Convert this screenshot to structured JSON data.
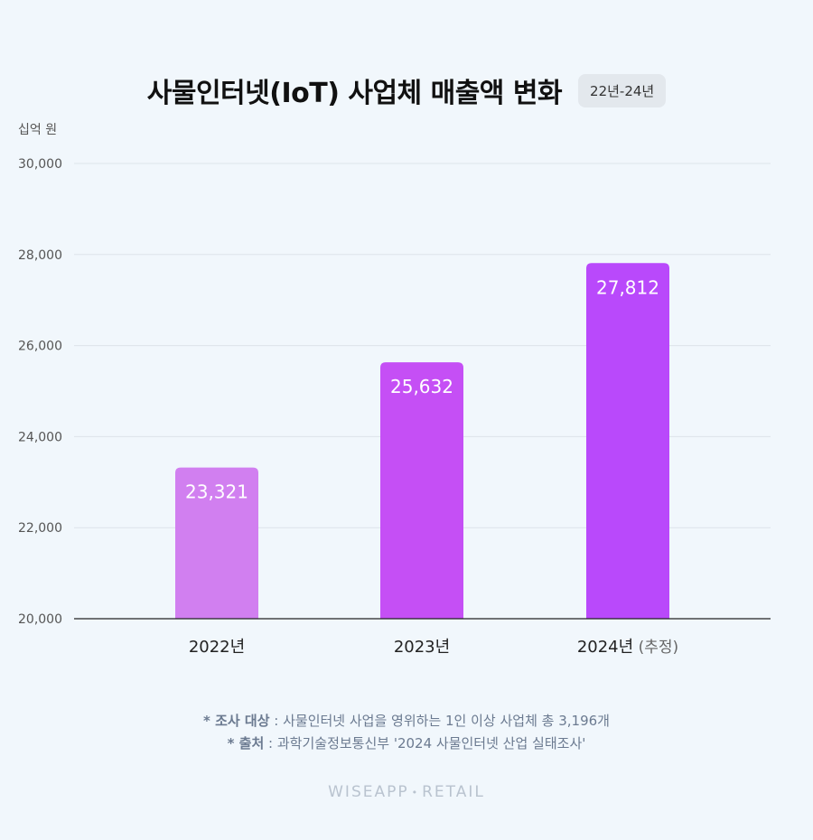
{
  "title": "사물인터넷(IoT) 사업체 매출액 변화",
  "period_badge": "22년-24년",
  "unit_label": "십억 원",
  "chart_data": {
    "type": "bar",
    "categories": [
      "2022년",
      "2023년",
      "2024년"
    ],
    "category_notes": [
      "",
      "",
      "(추정)"
    ],
    "values": [
      23321,
      25632,
      27812
    ],
    "value_labels": [
      "23,321",
      "25,632",
      "27,812"
    ],
    "bar_colors": [
      "#d17ff0",
      "#c54ff5",
      "#b949fb"
    ],
    "ylim": [
      20000,
      30000
    ],
    "yticks": [
      20000,
      22000,
      24000,
      26000,
      28000,
      30000
    ],
    "ytick_labels": [
      "20,000",
      "22,000",
      "24,000",
      "26,000",
      "28,000",
      "30,000"
    ],
    "grid": true,
    "legend": "none"
  },
  "footnotes": {
    "survey_key": "* 조사 대상",
    "survey_text": " : 사물인터넷 사업을 영위하는 1인 이상 사업체 총 3,196개",
    "source_key": "* 출처",
    "source_text": " : 과학기술정보통신부 '2024 사물인터넷 산업 실태조사'"
  },
  "brand": {
    "left": "WISEAPP",
    "sep": "•",
    "right": "RETAIL"
  }
}
